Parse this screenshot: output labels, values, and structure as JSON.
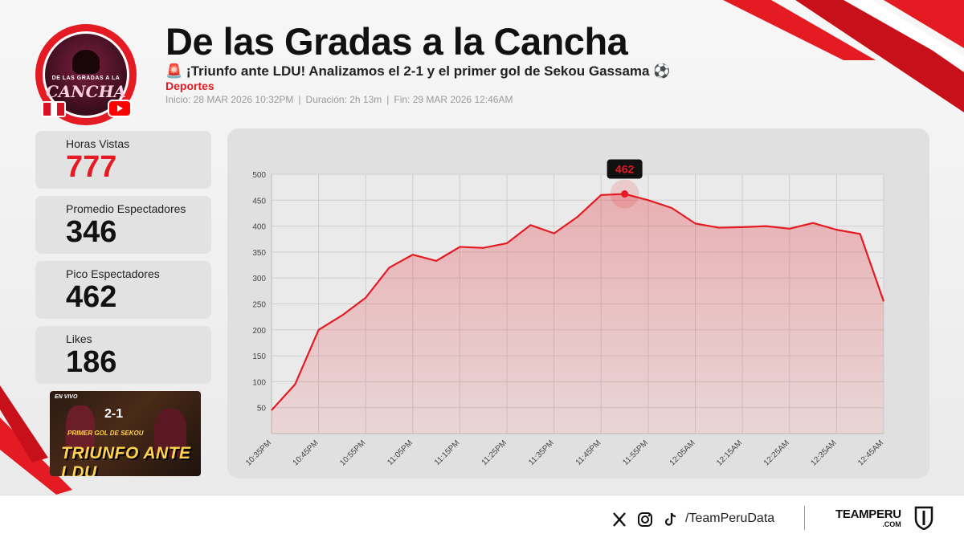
{
  "header": {
    "title": "De las Gradas a la Cancha",
    "subtitle_emoji": "🚨",
    "subtitle": "¡Triunfo ante LDU! Analizamos el 2-1 y el primer gol de Sekou Gassama",
    "subtitle_end_emoji": "⚽",
    "category": "Deportes",
    "inicio": "Inicio: 28 MAR 2026 10:32PM",
    "duracion": "Duración: 2h 13m",
    "fin": "Fin: 29 MAR 2026 12:46AM",
    "separator": "|"
  },
  "logo": {
    "top_text": "DE LAS GRADAS A LA",
    "main_text": "CANCHA"
  },
  "stats": [
    {
      "label": "Horas Vistas",
      "value": "777"
    },
    {
      "label": "Promedio Espectadores",
      "value": "346"
    },
    {
      "label": "Pico Espectadores",
      "value": "462"
    },
    {
      "label": "Likes",
      "value": "186"
    }
  ],
  "thumbnail": {
    "live": "EN VIVO",
    "score": "2-1",
    "small": "PRIMER GOL DE SEKOU",
    "text": "TRIUNFO ANTE LDU"
  },
  "chart_data": {
    "type": "area",
    "x": [
      "10:35PM",
      "10:40PM",
      "10:45PM",
      "10:50PM",
      "10:55PM",
      "11:00PM",
      "11:05PM",
      "11:10PM",
      "11:15PM",
      "11:20PM",
      "11:25PM",
      "11:30PM",
      "11:35PM",
      "11:40PM",
      "11:45PM",
      "11:50PM",
      "11:55PM",
      "12:00AM",
      "12:05AM",
      "12:10AM",
      "12:15AM",
      "12:20AM",
      "12:25AM",
      "12:30AM",
      "12:35AM",
      "12:40AM",
      "12:45AM"
    ],
    "tick_labels": [
      "10:35PM",
      "10:45PM",
      "10:55PM",
      "11:05PM",
      "11:15PM",
      "11:25PM",
      "11:35PM",
      "11:45PM",
      "11:55PM",
      "12:05AM",
      "12:15AM",
      "12:25AM",
      "12:35AM",
      "12:45AM"
    ],
    "values": [
      45,
      95,
      200,
      228,
      262,
      320,
      345,
      333,
      360,
      358,
      367,
      402,
      386,
      418,
      460,
      462,
      450,
      435,
      405,
      397,
      398,
      400,
      395,
      406,
      393,
      385,
      255
    ],
    "y_ticks": [
      50,
      100,
      150,
      200,
      250,
      300,
      350,
      400,
      450,
      500
    ],
    "ylim": [
      0,
      500
    ],
    "peak_label": "462",
    "grid": true,
    "color": "#e41b23"
  },
  "footer": {
    "handle": "/TeamPeruData",
    "brand": "TEAMPERU",
    "brand_domain": ".COM"
  },
  "colors": {
    "accent": "#e41b23",
    "flag_red": "#d91023"
  }
}
